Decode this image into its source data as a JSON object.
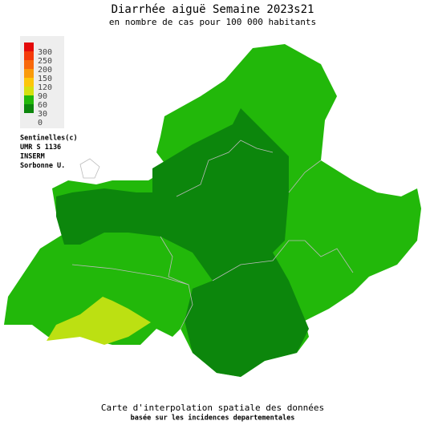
{
  "header": {
    "title": "Diarrhée aiguë Semaine 2023s21",
    "subtitle": "en nombre de cas pour 100 000 habitants"
  },
  "legend": {
    "levels": [
      {
        "label": 300,
        "color": "#e40a0a"
      },
      {
        "label": 250,
        "color": "#f43a0a"
      },
      {
        "label": 200,
        "color": "#f8680a"
      },
      {
        "label": 150,
        "color": "#fa9a0a"
      },
      {
        "label": 120,
        "color": "#fcc60a"
      },
      {
        "label": 90,
        "color": "#d4e010"
      },
      {
        "label": 60,
        "color": "#22b80a"
      },
      {
        "label": 30,
        "color": "#0c860c"
      },
      {
        "label": 0,
        "color": null
      }
    ]
  },
  "credits": [
    "Sentinelles(c)",
    "UMR S 1136",
    "INSERM",
    "Sorbonne U."
  ],
  "footer": {
    "line1": "Carte d'interpolation spatiale des données",
    "line2": "basée sur les incidences departementales"
  }
}
